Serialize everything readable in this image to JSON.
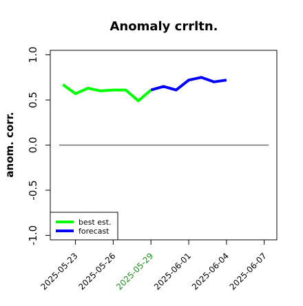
{
  "chart_data": {
    "type": "line",
    "title": "Anomaly crrltn.",
    "xlabel": "",
    "ylabel": "anom. corr.",
    "ylim": [
      -1.05,
      1.05
    ],
    "yticks": [
      {
        "value": -1.0,
        "label": "-1.0"
      },
      {
        "value": -0.5,
        "label": "-0.5"
      },
      {
        "value": 0.0,
        "label": "0.0"
      },
      {
        "value": 0.5,
        "label": "0.5"
      },
      {
        "value": 1.0,
        "label": "1.0"
      }
    ],
    "xlim": [
      "2025-05-21",
      "2025-06-08"
    ],
    "xticks": [
      {
        "value": "2025-05-23",
        "label": "2025-05-23",
        "color": "#000000"
      },
      {
        "value": "2025-05-26",
        "label": "2025-05-26",
        "color": "#000000"
      },
      {
        "value": "2025-05-29",
        "label": "2025-05-29",
        "color": "#228B22"
      },
      {
        "value": "2025-06-01",
        "label": "2025-06-01",
        "color": "#000000"
      },
      {
        "value": "2025-06-04",
        "label": "2025-06-04",
        "color": "#000000"
      },
      {
        "value": "2025-06-07",
        "label": "2025-06-07",
        "color": "#000000"
      }
    ],
    "reference_line": {
      "y": 0.0,
      "x_from": "2025-05-21",
      "x_to": "2025-06-08",
      "color": "#555555"
    },
    "grid": false,
    "legend": {
      "position": "bottom-left"
    },
    "series": [
      {
        "name": "best est.",
        "color": "#00ff00",
        "x": [
          "2025-05-22",
          "2025-05-23",
          "2025-05-24",
          "2025-05-25",
          "2025-05-26",
          "2025-05-27",
          "2025-05-28",
          "2025-05-29"
        ],
        "y": [
          0.67,
          0.57,
          0.63,
          0.6,
          0.61,
          0.61,
          0.49,
          0.61
        ]
      },
      {
        "name": "forecast",
        "color": "#0000ff",
        "x": [
          "2025-05-29",
          "2025-05-30",
          "2025-05-31",
          "2025-06-01",
          "2025-06-02",
          "2025-06-03",
          "2025-06-04"
        ],
        "y": [
          0.61,
          0.65,
          0.61,
          0.72,
          0.75,
          0.7,
          0.72
        ]
      }
    ]
  }
}
